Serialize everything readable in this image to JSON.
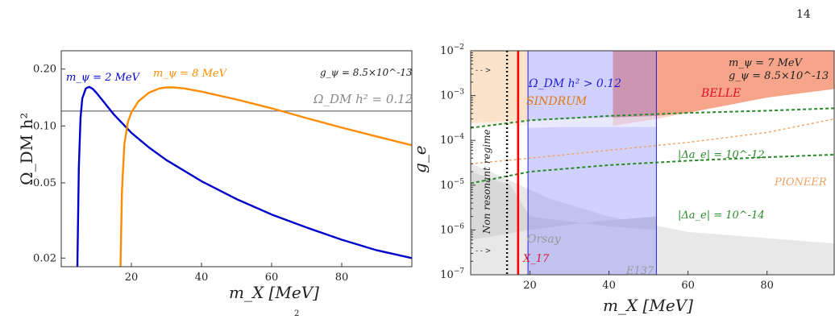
{
  "page_number": "14",
  "caption_fragment": "2",
  "chart_data": [
    {
      "type": "line",
      "xlabel": "m_X [MeV]",
      "ylabel": "Ω_DM h²",
      "xlim": [
        0,
        100
      ],
      "ylim": [
        0.018,
        0.25
      ],
      "yscale": "log",
      "xticks": [
        20,
        40,
        60,
        80
      ],
      "yticks": [
        0.02,
        0.05,
        0.1,
        0.2
      ],
      "ytick_labels": [
        "0.02",
        "0.05",
        "0.10",
        "0.20"
      ],
      "grid": false,
      "annotations": {
        "g_psi": "g_ψ = 8.5×10^-13",
        "relic": "Ω_DM h² = 0.12",
        "series_2": "m_ψ = 2 MeV",
        "series_8": "m_ψ = 8 MeV"
      },
      "hline": {
        "y": 0.12,
        "color": "#888888"
      },
      "series": [
        {
          "name": "m_ψ = 2 MeV",
          "color": "#0000cc",
          "x": [
            4.6,
            5.0,
            5.5,
            6.0,
            7.0,
            8.0,
            9.0,
            10,
            12,
            15,
            20,
            25,
            30,
            40,
            50,
            60,
            70,
            80,
            90,
            100
          ],
          "y": [
            0.018,
            0.06,
            0.11,
            0.14,
            0.158,
            0.161,
            0.157,
            0.15,
            0.135,
            0.115,
            0.092,
            0.077,
            0.066,
            0.051,
            0.041,
            0.034,
            0.029,
            0.025,
            0.022,
            0.02
          ]
        },
        {
          "name": "m_ψ = 8 MeV",
          "color": "#ff8c00",
          "x": [
            16.9,
            17.3,
            18.0,
            19.0,
            20.0,
            22,
            25,
            28,
            30,
            32,
            35,
            40,
            50,
            60,
            70,
            80,
            90,
            100
          ],
          "y": [
            0.018,
            0.045,
            0.08,
            0.105,
            0.118,
            0.135,
            0.15,
            0.158,
            0.16,
            0.16,
            0.158,
            0.152,
            0.138,
            0.124,
            0.11,
            0.098,
            0.088,
            0.079
          ]
        }
      ]
    },
    {
      "type": "area",
      "xlabel": "m_X [MeV]",
      "ylabel": "g_e",
      "xlim": [
        5,
        97
      ],
      "ylim": [
        1e-07,
        0.01
      ],
      "yscale": "log",
      "xticks": [
        20,
        40,
        60,
        80
      ],
      "yticks_exp": [
        -7,
        -6,
        -5,
        -4,
        -3,
        -2
      ],
      "grid": false,
      "annotations": {
        "params_mpsi": "m_ψ = 7 MeV",
        "params_gpsi": "g_ψ = 8.5×10^-13",
        "omega": "Ω_DM h² > 0.12",
        "sindrum": "SINDRUM",
        "belle": "BELLE",
        "pioneer": "PIONEER",
        "ae12": "|Δa_e| = 10^-12",
        "ae14": "|Δa_e| = 10^-14",
        "orsay": "Orsay",
        "e137": "E137",
        "x17": "X_17",
        "nonres": "Non resonant regime",
        "arrow": "- - >"
      },
      "x17_line": {
        "x": 17,
        "color": "#ff0000"
      },
      "nonres_line": {
        "x": 14.2
      },
      "omega_band": {
        "x": [
          19.5,
          52
        ]
      },
      "regions": [
        {
          "name": "BELLE",
          "color": "#f8a88c",
          "x": [
            41,
            97
          ],
          "y_lower": [
            [
              41,
              0.00021
            ],
            [
              52,
              0.0003
            ],
            [
              65,
              0.0005
            ],
            [
              80,
              0.0009
            ],
            [
              97,
              0.0014
            ]
          ],
          "y_upper": 0.01
        },
        {
          "name": "SINDRUM",
          "color": "#fbe3cd",
          "x": [
            5,
            19.5
          ],
          "y_lower_const": 0.00022,
          "y_upper": 0.01
        },
        {
          "name": "Orsay",
          "color": "#dddddd"
        },
        {
          "name": "E137",
          "color": "#e6e6e6"
        }
      ],
      "series": [
        {
          "name": "|Δa_e| = 10^-12",
          "color": "#2a8a2a",
          "x": [
            5,
            20,
            40,
            60,
            80,
            97
          ],
          "y": [
            0.00019,
            0.00028,
            0.00035,
            0.00041,
            0.00046,
            0.00052
          ]
        },
        {
          "name": "|Δa_e| = 10^-14",
          "color": "#2a8a2a",
          "x": [
            5,
            20,
            40,
            60,
            80,
            97
          ],
          "y": [
            1.1e-05,
            2e-05,
            2.8e-05,
            3.5e-05,
            4.2e-05,
            4.8e-05
          ]
        },
        {
          "name": "PIONEER",
          "color": "#f0a060",
          "x": [
            5,
            20,
            40,
            60,
            80,
            97
          ],
          "y": [
            3e-05,
            4e-05,
            6e-05,
            9e-05,
            0.00015,
            0.0003
          ]
        }
      ]
    }
  ]
}
